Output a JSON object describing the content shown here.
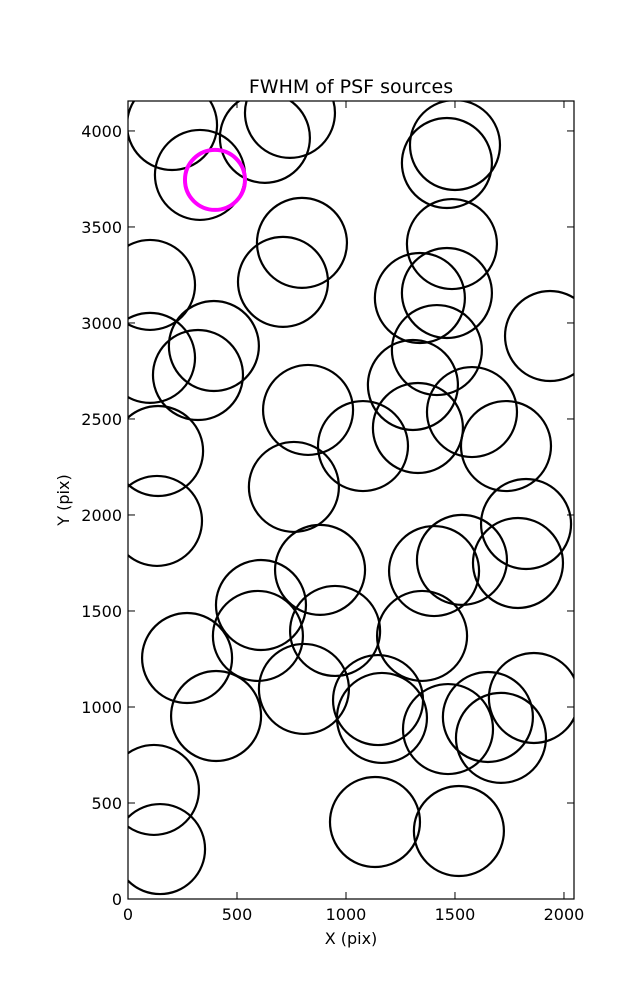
{
  "chart_data": {
    "type": "scatter",
    "title": "FWHM of PSF sources",
    "x_label": "X (pix)",
    "y_label": "Y (pix)",
    "xlim": [
      0,
      2046
    ],
    "ylim": [
      0,
      4156
    ],
    "xticks": [
      0,
      500,
      1000,
      1500,
      2000
    ],
    "yticks": [
      0,
      500,
      1000,
      1500,
      2000,
      2500,
      3000,
      3500,
      4000
    ],
    "series": [
      {
        "color": "#000000",
        "size": 45,
        "x": [
          202,
          330,
          628,
          743,
          1500,
          1463,
          1486,
          798,
          711,
          101,
          394,
          101,
          321,
          1339,
          1463,
          1417,
          1936,
          1307,
          826,
          1078,
          1330,
          1578,
          1734,
          138,
          761,
          133,
          1826,
          881,
          1404,
          1532,
          1789,
          610,
          596,
          950,
          1349,
          271,
          807,
          1147,
          1165,
          404,
          1468,
          1651,
          1862,
          1711,
          119,
          147,
          1133,
          1518
        ],
        "values": [
          4031,
          3771,
          3964,
          4094,
          3927,
          3833,
          3411,
          3417,
          3214,
          3198,
          2880,
          2818,
          2729,
          3130,
          3156,
          2859,
          2932,
          2677,
          2547,
          2359,
          2453,
          2536,
          2359,
          2333,
          2146,
          1969,
          1953,
          1714,
          1708,
          1766,
          1750,
          1531,
          1370,
          1396,
          1370,
          1255,
          1094,
          1036,
          943,
          953,
          885,
          948,
          1047,
          839,
          568,
          260,
          401,
          354
        ]
      },
      {
        "color": "#ff00ff",
        "size": 30,
        "x": [
          399
        ],
        "values": [
          3745
        ]
      }
    ]
  }
}
